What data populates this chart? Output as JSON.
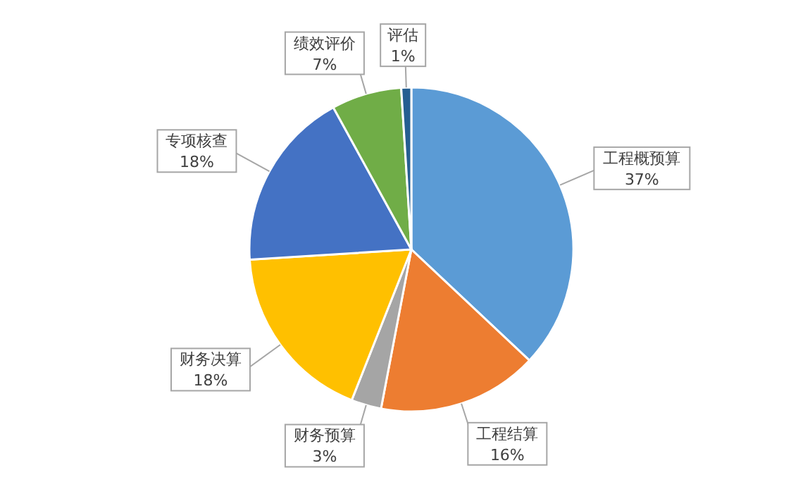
{
  "chart_data": {
    "type": "pie",
    "categories": [
      "工程概预算",
      "工程结算",
      "财务预算",
      "财务决算",
      "专项核查",
      "绩效评价",
      "评估"
    ],
    "values": [
      37,
      16,
      3,
      18,
      18,
      7,
      1
    ],
    "colors": [
      "#5b9bd5",
      "#ed7d31",
      "#a5a5a5",
      "#ffc000",
      "#4472c4",
      "#70ad47",
      "#255e91"
    ],
    "value_labels": [
      "37%",
      "16%",
      "3%",
      "18%",
      "18%",
      "7%",
      "1%"
    ]
  }
}
